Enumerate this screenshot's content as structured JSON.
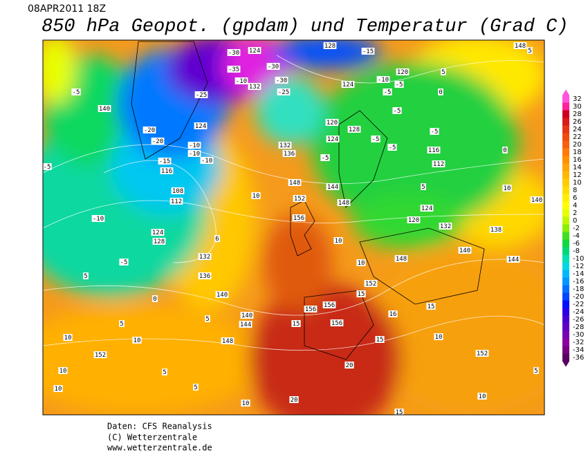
{
  "header": {
    "date": "08APR2011 18Z",
    "title": "850 hPa Geopot. (gpdam) und  Temperatur (Grad C)"
  },
  "colorbar": {
    "levels": [
      32,
      30,
      28,
      26,
      24,
      22,
      20,
      18,
      16,
      14,
      12,
      10,
      8,
      6,
      4,
      2,
      0,
      -2,
      -4,
      -6,
      -8,
      -10,
      -12,
      -14,
      -16,
      -18,
      -20,
      -22,
      -24,
      -26,
      -28,
      -30,
      -32,
      -34,
      -36
    ],
    "colors": [
      "#ff55dd",
      "#ff2299",
      "#cc0022",
      "#d81a18",
      "#e63414",
      "#f04a10",
      "#f86010",
      "#ff7a08",
      "#ff9000",
      "#ffa400",
      "#ffb800",
      "#ffcc00",
      "#ffdd00",
      "#ffee00",
      "#ffff00",
      "#e4ff00",
      "#c0f800",
      "#88f000",
      "#40e020",
      "#10d840",
      "#00d878",
      "#00e0b0",
      "#00d8e0",
      "#00b8ff",
      "#0098ff",
      "#0070ff",
      "#0044ff",
      "#0010ff",
      "#2800e8",
      "#4800d0",
      "#6000c0",
      "#7800b0",
      "#8c00a0",
      "#780080",
      "#580060"
    ]
  },
  "map": {
    "labels": [
      "128",
      "-15",
      "148",
      "5",
      "-5",
      "140",
      "-20",
      "-20",
      "124",
      "-25",
      "-30",
      "124",
      "-35",
      "-30",
      "-30",
      "132",
      "-25",
      "-10",
      "-5",
      "120",
      "124",
      "-10",
      "-5",
      "0",
      "5",
      "120",
      "124",
      "128",
      "-5",
      "-5",
      "-5",
      "-5",
      "136",
      "132",
      "-5",
      "116",
      "0",
      "112",
      "-10",
      "-10",
      "-10",
      "-15",
      "116",
      "-5",
      "108",
      "112",
      "-10",
      "124",
      "128",
      "-5",
      "132",
      "136",
      "140",
      "0",
      "5",
      "10",
      "148",
      "152",
      "156",
      "144",
      "148",
      "120",
      "124",
      "132",
      "138",
      "5",
      "10",
      "140",
      "140",
      "144",
      "148",
      "10",
      "10",
      "152",
      "15",
      "16",
      "15",
      "10",
      "152",
      "156",
      "156",
      "156",
      "15",
      "15",
      "20",
      "20",
      "15",
      "10",
      "140",
      "144",
      "148",
      "152",
      "10",
      "10",
      "5",
      "10",
      "5",
      "10",
      "5",
      "10",
      "5",
      "6",
      "5"
    ]
  },
  "footer": {
    "source": "Daten: CFS Reanalysis",
    "copyright": "(C) Wetterzentrale",
    "url": "www.wetterzentrale.de"
  }
}
